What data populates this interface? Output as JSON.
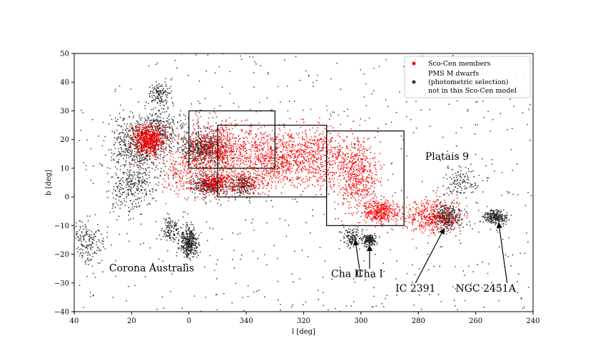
{
  "chart_data": {
    "type": "scatter",
    "xlabel": "l [deg]",
    "ylabel": "b [deg]",
    "xlim": [
      40,
      240
    ],
    "ylim": [
      -40,
      50
    ],
    "x_axis_wraps_at_360": true,
    "x_ticks": [
      {
        "l": 40,
        "label": "40"
      },
      {
        "l": 20,
        "label": "20"
      },
      {
        "l": 0,
        "label": "0"
      },
      {
        "l": 340,
        "label": "340"
      },
      {
        "l": 320,
        "label": "320"
      },
      {
        "l": 300,
        "label": "300"
      },
      {
        "l": 280,
        "label": "280"
      },
      {
        "l": 260,
        "label": "260"
      },
      {
        "l": 240,
        "label": "240"
      }
    ],
    "y_ticks": [
      -40,
      -30,
      -20,
      -10,
      0,
      10,
      20,
      30,
      40,
      50
    ],
    "grid": false,
    "legend_position": "top-right",
    "legend": [
      {
        "label": "Sco-Cen members",
        "color": "#ff0000"
      },
      {
        "label": "PMS M dwarfs (photometric selection) not in this Sco-Cen model",
        "lines": [
          "PMS M dwarfs",
          "(photometric selection)",
          "not in this Sco-Cen model"
        ],
        "color": "#333333"
      }
    ],
    "series": [
      {
        "name": "PMS M dwarfs (photometric selection) not in this Sco-Cen model",
        "color": "#222222",
        "approx_count": 9000,
        "background_density_per_sq_deg": 0.35,
        "clusters": [
          {
            "l": 17,
            "b": 18,
            "sl": 5,
            "sb": 5,
            "weight": 1.0
          },
          {
            "l": 20,
            "b": 3,
            "sl": 4,
            "sb": 4,
            "weight": 0.4
          },
          {
            "l": 10,
            "b": 24,
            "sl": 4,
            "sb": 4,
            "weight": 0.4
          },
          {
            "l": 0,
            "b": -16,
            "sl": 1.5,
            "sb": 2.5,
            "weight": 0.6
          },
          {
            "l": 6,
            "b": -11,
            "sl": 2,
            "sb": 2,
            "weight": 0.2
          },
          {
            "l": 355,
            "b": 17,
            "sl": 4,
            "sb": 3,
            "weight": 0.8
          },
          {
            "l": 353,
            "b": 4,
            "sl": 3,
            "sb": 2,
            "weight": 0.5
          },
          {
            "l": 341,
            "b": 4,
            "sl": 2,
            "sb": 2,
            "weight": 0.3
          },
          {
            "l": 297,
            "b": -15,
            "sl": 1,
            "sb": 1,
            "weight": 0.3
          },
          {
            "l": 303,
            "b": -14,
            "sl": 1.5,
            "sb": 1.5,
            "weight": 0.2
          },
          {
            "l": 270,
            "b": -7,
            "sl": 2.5,
            "sb": 2,
            "weight": 0.5
          },
          {
            "l": 253,
            "b": -7,
            "sl": 2,
            "sb": 1.2,
            "weight": 0.4
          },
          {
            "l": 265,
            "b": 5,
            "sl": 3,
            "sb": 3,
            "weight": 0.2
          },
          {
            "l": 10,
            "b": 36,
            "sl": 2,
            "sb": 2,
            "weight": 0.2
          },
          {
            "l": 36,
            "b": -16,
            "sl": 3,
            "sb": 4,
            "weight": 0.3
          }
        ]
      },
      {
        "name": "Sco-Cen members",
        "color": "#ff0000",
        "approx_count": 10000,
        "clusters": [
          {
            "l": 14,
            "b": 20,
            "sl": 3,
            "sb": 2.5,
            "weight": 1.3
          },
          {
            "l": 350,
            "b": 16,
            "sl": 6,
            "sb": 5,
            "weight": 1.6
          },
          {
            "l": 330,
            "b": 14,
            "sl": 6,
            "sb": 5,
            "weight": 1.4
          },
          {
            "l": 315,
            "b": 14,
            "sl": 5,
            "sb": 5,
            "weight": 1.0
          },
          {
            "l": 302,
            "b": 8,
            "sl": 4,
            "sb": 6,
            "weight": 1.2
          },
          {
            "l": 293,
            "b": -5,
            "sl": 3,
            "sb": 2,
            "weight": 0.8
          },
          {
            "l": 275,
            "b": -7,
            "sl": 5,
            "sb": 3,
            "weight": 0.9
          },
          {
            "l": 350,
            "b": 5,
            "sl": 3,
            "sb": 2,
            "weight": 0.6
          },
          {
            "l": 340,
            "b": 5,
            "sl": 3,
            "sb": 2,
            "weight": 0.3
          },
          {
            "l": 2,
            "b": 8,
            "sl": 4,
            "sb": 4,
            "weight": 0.4
          }
        ]
      }
    ],
    "boxes": [
      {
        "l_min": 0,
        "l_max": 30,
        "b_min": 10,
        "b_max": 30,
        "l_min_display": 330,
        "l_max_display": 360
      },
      {
        "l_min": 312,
        "l_max": 350,
        "b_min": 0,
        "b_max": 25
      },
      {
        "l_min": 285,
        "l_max": 312,
        "b_min": -10,
        "b_max": 23
      }
    ],
    "annotations": [
      {
        "text": "Platais 9",
        "l": 270,
        "b": 13
      },
      {
        "text": "Corona Australis",
        "l": 13,
        "b": -26
      },
      {
        "text": "Cha II",
        "l": 305,
        "b": -28,
        "arrow_to": {
          "l": 302,
          "b": -15
        }
      },
      {
        "text": "Cha I",
        "l": 297,
        "b": -28,
        "arrow_to": {
          "l": 297,
          "b": -17
        }
      },
      {
        "text": "IC 2391",
        "l": 281,
        "b": -33,
        "arrow_to": {
          "l": 271,
          "b": -11
        }
      },
      {
        "text": "NGC 2451A",
        "l": 259,
        "b": -33,
        "arrow_to": {
          "l": 252,
          "b": -9
        }
      }
    ]
  }
}
